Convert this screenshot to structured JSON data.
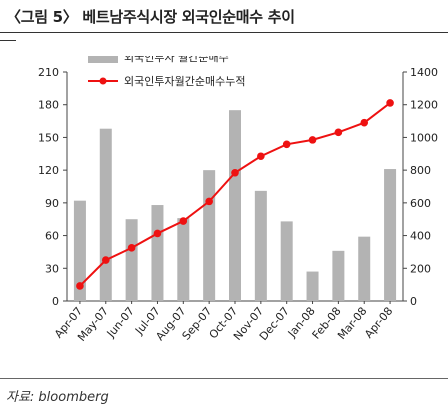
{
  "figure": {
    "title": "〈그림 5〉 베트남주식시장 외국인순매수 추이",
    "source": "자료: bloomberg"
  },
  "chart_data": {
    "type": "bar+line",
    "title": "",
    "categories": [
      "Apr-07",
      "May-07",
      "Jun-07",
      "Jul-07",
      "Aug-07",
      "Sep-07",
      "Oct-07",
      "Nov-07",
      "Dec-07",
      "Jan-08",
      "Feb-08",
      "Mar-08",
      "Apr-08"
    ],
    "series": [
      {
        "name": "외국인투자 월간순매수",
        "type": "bar",
        "axis": "left",
        "color": "#b3b3b3",
        "values": [
          92,
          158,
          75,
          88,
          76,
          120,
          175,
          101,
          73,
          27,
          46,
          59,
          121
        ]
      },
      {
        "name": "외국인투자월간순매수누적",
        "type": "line",
        "axis": "right",
        "color": "#ee1111",
        "values": [
          92,
          250,
          325,
          413,
          489,
          609,
          784,
          885,
          958,
          985,
          1031,
          1090,
          1211
        ]
      }
    ],
    "y_left": {
      "min": 0,
      "max": 210,
      "ticks": [
        0,
        30,
        60,
        90,
        120,
        150,
        180,
        210
      ]
    },
    "y_right": {
      "min": 0,
      "max": 1400,
      "ticks": [
        0,
        200,
        400,
        600,
        800,
        1000,
        1200,
        1400
      ]
    },
    "grid": false,
    "legend_position": "top-left"
  }
}
